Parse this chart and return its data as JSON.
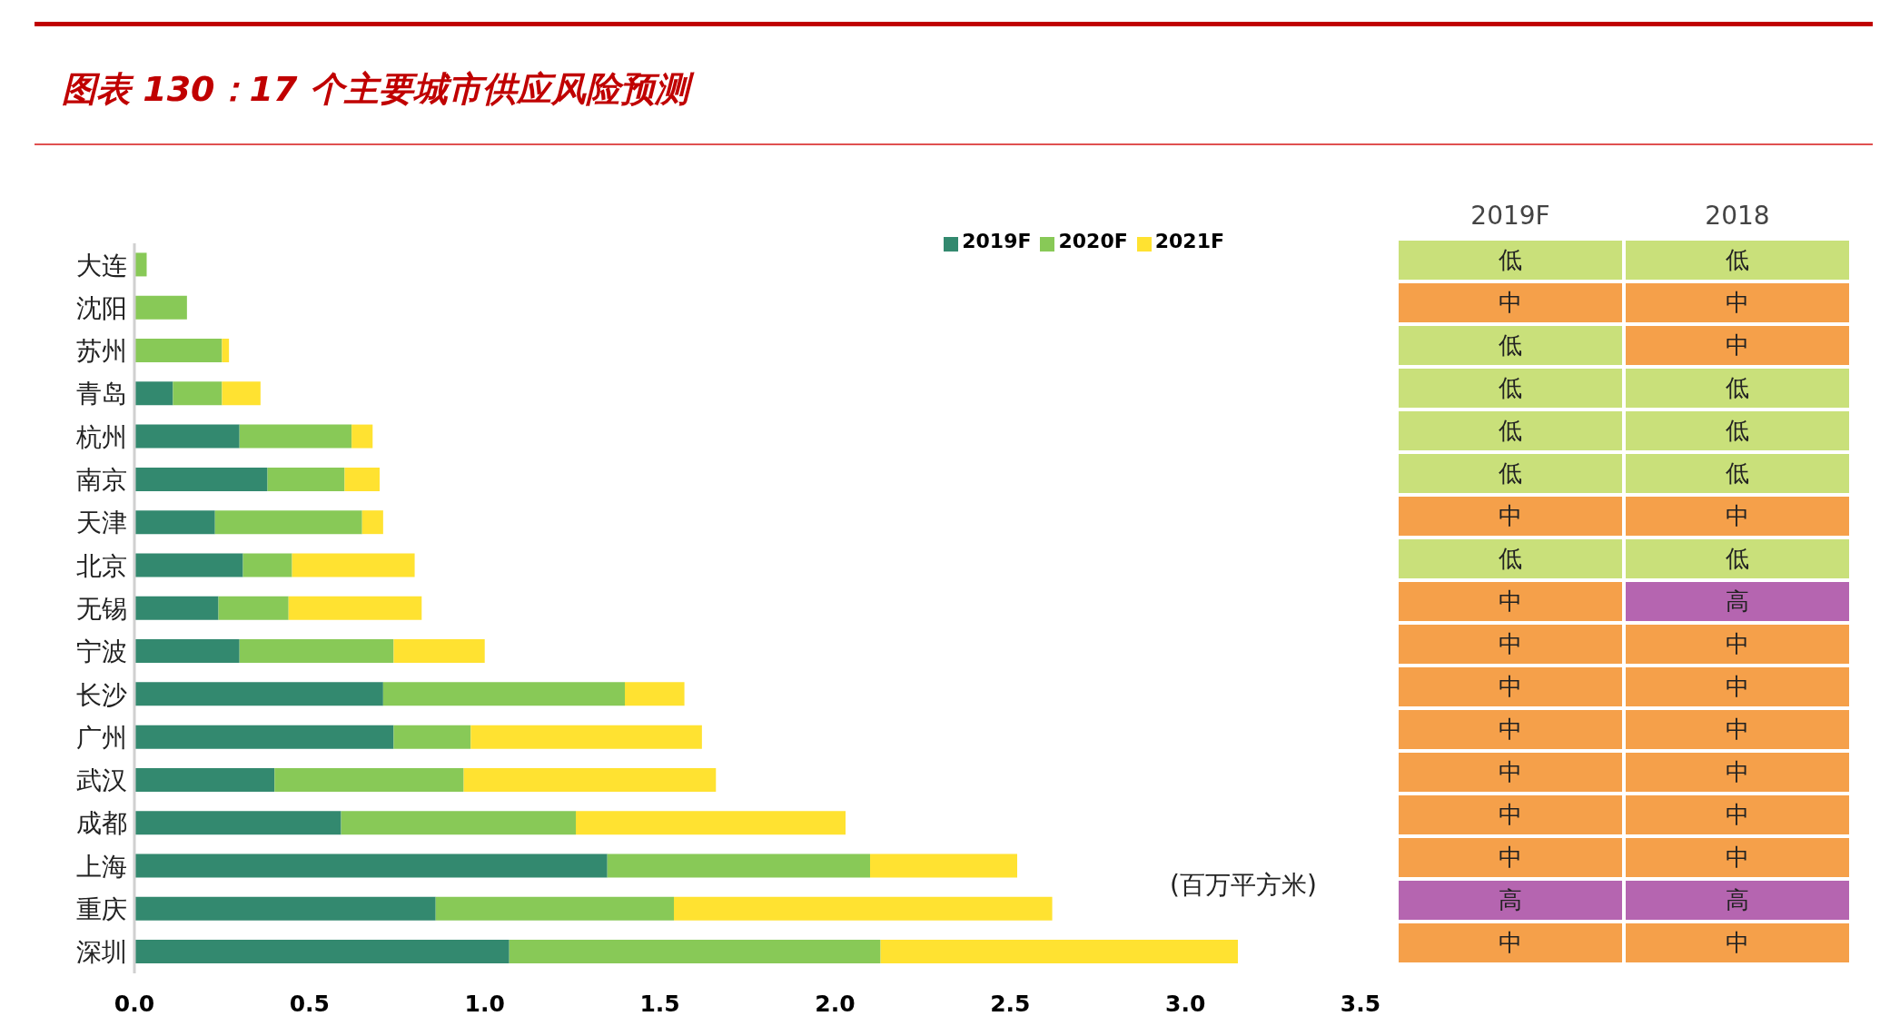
{
  "chart_data": [
    {
      "type": "bar",
      "orientation": "horizontal",
      "stacked": true,
      "title": "图表 130：17 个主要城市供应风险预测",
      "categories": [
        "大连",
        "沈阳",
        "苏州",
        "青岛",
        "杭州",
        "南京",
        "天津",
        "北京",
        "无锡",
        "宁波",
        "长沙",
        "广州",
        "武汉",
        "成都",
        "上海",
        "重庆",
        "深圳"
      ],
      "series": [
        {
          "name": "2019F",
          "color": "#33896f",
          "values": [
            0,
            0,
            0,
            0.11,
            0.3,
            0.38,
            0.23,
            0.31,
            0.24,
            0.3,
            0.71,
            0.74,
            0.4,
            0.59,
            1.35,
            0.86,
            1.07
          ]
        },
        {
          "name": "2020F",
          "color": "#88c957",
          "values": [
            0.035,
            0.15,
            0.25,
            0.14,
            0.32,
            0.22,
            0.42,
            0.14,
            0.2,
            0.44,
            0.69,
            0.22,
            0.54,
            0.67,
            0.75,
            0.68,
            1.06
          ]
        },
        {
          "name": "2021F",
          "color": "#ffe231",
          "values": [
            0,
            0,
            0.02,
            0.11,
            0.06,
            0.1,
            0.06,
            0.35,
            0.38,
            0.26,
            0.17,
            0.66,
            0.72,
            0.77,
            0.42,
            1.08,
            1.02
          ]
        }
      ],
      "xlim": [
        0,
        3.5
      ],
      "xticks": [
        {
          "value": 0,
          "label": "0.0"
        },
        {
          "value": 0.5,
          "label": "0.5"
        },
        {
          "value": 1,
          "label": "1.0"
        },
        {
          "value": 1.5,
          "label": "1.5"
        },
        {
          "value": 2,
          "label": "2.0"
        },
        {
          "value": 2.5,
          "label": "2.5"
        },
        {
          "value": 3,
          "label": "3.0"
        },
        {
          "value": 3.5,
          "label": "3.5"
        }
      ],
      "legend": "top right",
      "annotations": [
        "(百万平方米)"
      ]
    },
    {
      "type": "other",
      "categories": [
        "2019F",
        "2018"
      ],
      "cell_labels": [
        [
          "低",
          "低"
        ],
        [
          "中",
          "中"
        ],
        [
          "低",
          "中"
        ],
        [
          "低",
          "低"
        ],
        [
          "低",
          "低"
        ],
        [
          "低",
          "低"
        ],
        [
          "中",
          "中"
        ],
        [
          "低",
          "低"
        ],
        [
          "中",
          "高"
        ],
        [
          "中",
          "中"
        ],
        [
          "中",
          "中"
        ],
        [
          "中",
          "中"
        ],
        [
          "中",
          "中"
        ],
        [
          "中",
          "中"
        ],
        [
          "中",
          "中"
        ],
        [
          "高",
          "高"
        ],
        [
          "中",
          "中"
        ]
      ],
      "colors": [
        [
          "#c9e07a",
          "#c9e07a"
        ],
        [
          "#f5a04a",
          "#f5a04a"
        ],
        [
          "#c9e07a",
          "#f5a04a"
        ],
        [
          "#c9e07a",
          "#c9e07a"
        ],
        [
          "#c9e07a",
          "#c9e07a"
        ],
        [
          "#c9e07a",
          "#c9e07a"
        ],
        [
          "#f5a04a",
          "#f5a04a"
        ],
        [
          "#c9e07a",
          "#c9e07a"
        ],
        [
          "#f5a04a",
          "#b565b0"
        ],
        [
          "#f5a04a",
          "#f5a04a"
        ],
        [
          "#f5a04a",
          "#f5a04a"
        ],
        [
          "#f5a04a",
          "#f5a04a"
        ],
        [
          "#f5a04a",
          "#f5a04a"
        ],
        [
          "#f5a04a",
          "#f5a04a"
        ],
        [
          "#f5a04a",
          "#f5a04a"
        ],
        [
          "#b565b0",
          "#b565b0"
        ],
        [
          "#f5a04a",
          "#f5a04a"
        ]
      ]
    }
  ]
}
